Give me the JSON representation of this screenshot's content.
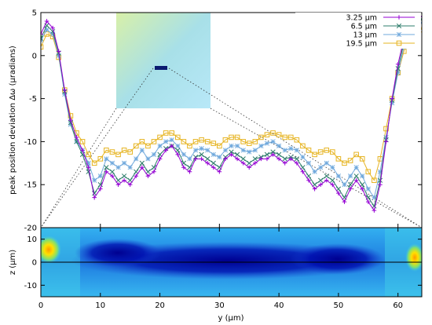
{
  "chart_data": [
    {
      "type": "line",
      "ylabel": "peak position deviation Δω (μradians)",
      "xlim": [
        0,
        64
      ],
      "ylim": [
        -20,
        5
      ],
      "y_ticks": [
        5,
        0,
        -5,
        -10,
        -15,
        -20
      ],
      "grid": false,
      "legend_position": "top-right",
      "x": [
        0,
        1,
        2,
        3,
        4,
        5,
        6,
        7,
        8,
        9,
        10,
        11,
        12,
        13,
        14,
        15,
        16,
        17,
        18,
        19,
        20,
        21,
        22,
        23,
        24,
        25,
        26,
        27,
        28,
        29,
        30,
        31,
        32,
        33,
        34,
        35,
        36,
        37,
        38,
        39,
        40,
        41,
        42,
        43,
        44,
        45,
        46,
        47,
        48,
        49,
        50,
        51,
        52,
        53,
        54,
        55,
        56,
        57,
        58,
        59,
        60,
        61,
        62,
        63,
        64
      ],
      "series": [
        {
          "name": "3.25 µm",
          "color": "#9400d3",
          "marker": "plus",
          "values": [
            2.5,
            4.0,
            3.2,
            0.5,
            -4.0,
            -7.5,
            -9.5,
            -11.0,
            -13.0,
            -16.5,
            -15.5,
            -13.5,
            -14.0,
            -15.0,
            -14.5,
            -15.0,
            -14.0,
            -13.0,
            -14.0,
            -13.5,
            -12.0,
            -11.0,
            -10.5,
            -11.5,
            -13.0,
            -13.5,
            -12.0,
            -12.0,
            -12.5,
            -13.0,
            -13.5,
            -12.0,
            -11.5,
            -12.0,
            -12.5,
            -13.0,
            -12.5,
            -12.0,
            -12.0,
            -11.5,
            -12.0,
            -12.5,
            -12.0,
            -12.5,
            -13.5,
            -14.5,
            -15.5,
            -15.0,
            -14.5,
            -15.0,
            -16.0,
            -17.0,
            -15.5,
            -14.5,
            -15.5,
            -17.0,
            -18.0,
            -15.0,
            -10.0,
            -5.0,
            -1.0,
            2.0,
            4.0,
            5.0,
            4.5
          ]
        },
        {
          "name": "6.5 µm",
          "color": "#2e7d6b",
          "marker": "x",
          "values": [
            2.0,
            3.5,
            2.8,
            0.3,
            -4.2,
            -7.8,
            -10.0,
            -11.5,
            -13.5,
            -16.0,
            -15.0,
            -13.0,
            -13.5,
            -14.5,
            -14.0,
            -14.5,
            -13.5,
            -12.5,
            -13.5,
            -13.0,
            -11.5,
            -10.8,
            -10.5,
            -11.0,
            -12.5,
            -13.0,
            -11.8,
            -11.5,
            -12.0,
            -12.5,
            -13.0,
            -11.8,
            -11.2,
            -11.5,
            -12.0,
            -12.5,
            -12.0,
            -11.8,
            -11.5,
            -11.2,
            -11.5,
            -12.0,
            -11.8,
            -12.0,
            -13.0,
            -14.0,
            -15.0,
            -14.5,
            -14.0,
            -14.5,
            -15.5,
            -16.5,
            -15.0,
            -14.0,
            -15.0,
            -16.5,
            -17.5,
            -14.5,
            -9.8,
            -5.2,
            -1.5,
            1.5,
            3.5,
            4.8,
            4.2
          ]
        },
        {
          "name": "13 µm",
          "color": "#6fa8dc",
          "marker": "star",
          "values": [
            1.8,
            3.0,
            2.5,
            0.0,
            -4.5,
            -8.0,
            -10.0,
            -11.0,
            -12.5,
            -14.5,
            -14.0,
            -12.0,
            -12.5,
            -13.0,
            -12.5,
            -13.0,
            -12.0,
            -11.0,
            -12.0,
            -11.5,
            -10.5,
            -10.0,
            -9.8,
            -10.5,
            -11.5,
            -12.0,
            -11.0,
            -10.8,
            -11.0,
            -11.5,
            -11.8,
            -11.0,
            -10.5,
            -10.5,
            -11.0,
            -11.2,
            -11.0,
            -10.5,
            -10.2,
            -10.0,
            -10.5,
            -11.0,
            -10.8,
            -11.0,
            -11.8,
            -12.5,
            -13.5,
            -13.0,
            -12.5,
            -13.0,
            -14.0,
            -15.0,
            -14.0,
            -13.0,
            -14.0,
            -15.5,
            -16.5,
            -13.5,
            -9.5,
            -5.5,
            -2.0,
            1.0,
            3.0,
            4.5,
            3.8
          ]
        },
        {
          "name": "19.5 µm",
          "color": "#e6b422",
          "marker": "square",
          "values": [
            1.0,
            2.5,
            2.2,
            -0.2,
            -4.0,
            -7.0,
            -9.0,
            -10.0,
            -11.5,
            -12.5,
            -12.0,
            -11.0,
            -11.2,
            -11.5,
            -11.0,
            -11.2,
            -10.5,
            -10.0,
            -10.5,
            -10.0,
            -9.5,
            -9.0,
            -9.0,
            -9.5,
            -10.0,
            -10.5,
            -10.0,
            -9.8,
            -10.0,
            -10.2,
            -10.5,
            -9.8,
            -9.5,
            -9.5,
            -10.0,
            -10.2,
            -10.0,
            -9.5,
            -9.2,
            -9.0,
            -9.2,
            -9.5,
            -9.5,
            -9.8,
            -10.5,
            -11.0,
            -11.5,
            -11.2,
            -11.0,
            -11.2,
            -12.0,
            -12.5,
            -12.2,
            -11.5,
            -12.0,
            -13.5,
            -14.5,
            -12.0,
            -8.5,
            -5.0,
            -2.0,
            0.5,
            2.5,
            4.0,
            3.0
          ]
        }
      ]
    },
    {
      "type": "heatmap",
      "xlabel": "y (µm)",
      "ylabel": "z (µm)",
      "xlim": [
        0,
        64
      ],
      "ylim": [
        -15,
        15
      ],
      "x_ticks": [
        0,
        10,
        20,
        30,
        40,
        50,
        60
      ],
      "y_ticks": [
        10,
        0,
        -10
      ],
      "grid": false,
      "colormap": "jet"
    }
  ]
}
